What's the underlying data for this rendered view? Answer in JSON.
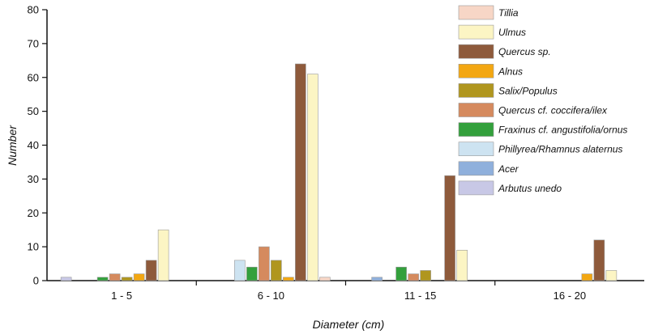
{
  "chart_data": {
    "type": "bar",
    "xlabel": "Diameter (cm)",
    "ylabel": "Number",
    "ylim": [
      0,
      80
    ],
    "yticks": [
      0,
      10,
      20,
      30,
      40,
      50,
      60,
      70,
      80
    ],
    "categories": [
      "1 - 5",
      "6 - 10",
      "11 - 15",
      "16 - 20"
    ],
    "legend_position": "top-right",
    "grid": false,
    "series": [
      {
        "name": "Arbutus unedo",
        "color": "#c8c8e6",
        "values": [
          1,
          0,
          0,
          0
        ]
      },
      {
        "name": "Acer",
        "color": "#8fb0dc",
        "values": [
          0,
          0,
          1,
          0
        ]
      },
      {
        "name": "Phillyrea/Rhamnus alaternus",
        "color": "#cde3f1",
        "values": [
          0,
          6,
          0,
          0
        ]
      },
      {
        "name": "Fraxinus cf. angustifolia/ornus",
        "color": "#33a03c",
        "values": [
          1,
          4,
          4,
          0
        ]
      },
      {
        "name": "Quercus cf. coccifera/ilex",
        "color": "#d58a5e",
        "values": [
          2,
          10,
          2,
          0
        ]
      },
      {
        "name": "Salix/Populus",
        "color": "#b0961e",
        "values": [
          1,
          6,
          3,
          0
        ]
      },
      {
        "name": "Alnus",
        "color": "#f3a712",
        "values": [
          2,
          1,
          0,
          2
        ]
      },
      {
        "name": "Quercus sp.",
        "color": "#8e5a3b",
        "values": [
          6,
          64,
          31,
          12
        ]
      },
      {
        "name": "Ulmus",
        "color": "#fcf5c4",
        "values": [
          15,
          61,
          9,
          3
        ]
      },
      {
        "name": "Tillia",
        "color": "#f7d6c6",
        "values": [
          0,
          1,
          0,
          0
        ]
      }
    ],
    "legend": [
      {
        "label": "Tillia",
        "series": "Tillia",
        "color": "#f7d6c6"
      },
      {
        "label": "Ulmus",
        "series": "Ulmus",
        "color": "#fcf5c4"
      },
      {
        "label": "Quercus sp.",
        "series": "Quercus sp.",
        "color": "#8e5a3b"
      },
      {
        "label": "Alnus",
        "series": "Alnus",
        "color": "#f3a712"
      },
      {
        "label": "Salix/Populus",
        "series": "Salix/Populus",
        "color": "#b0961e"
      },
      {
        "label": "Quercus cf. coccifera/ilex",
        "series": "Quercus cf. coccifera/ilex",
        "color": "#d58a5e"
      },
      {
        "label": "Fraxinus cf. angustifolia/ornus",
        "series": "Fraxinus cf. angustifolia/ornus",
        "color": "#33a03c"
      },
      {
        "label": "Phillyrea/Rhamnus alaternus",
        "series": "Phillyrea/Rhamnus alaternus",
        "color": "#cde3f1"
      },
      {
        "label": "Acer",
        "series": "Acer",
        "color": "#8fb0dc"
      },
      {
        "label": "Arbutus unedo",
        "series": "Arbutus unedo",
        "color": "#c8c8e6"
      }
    ]
  }
}
